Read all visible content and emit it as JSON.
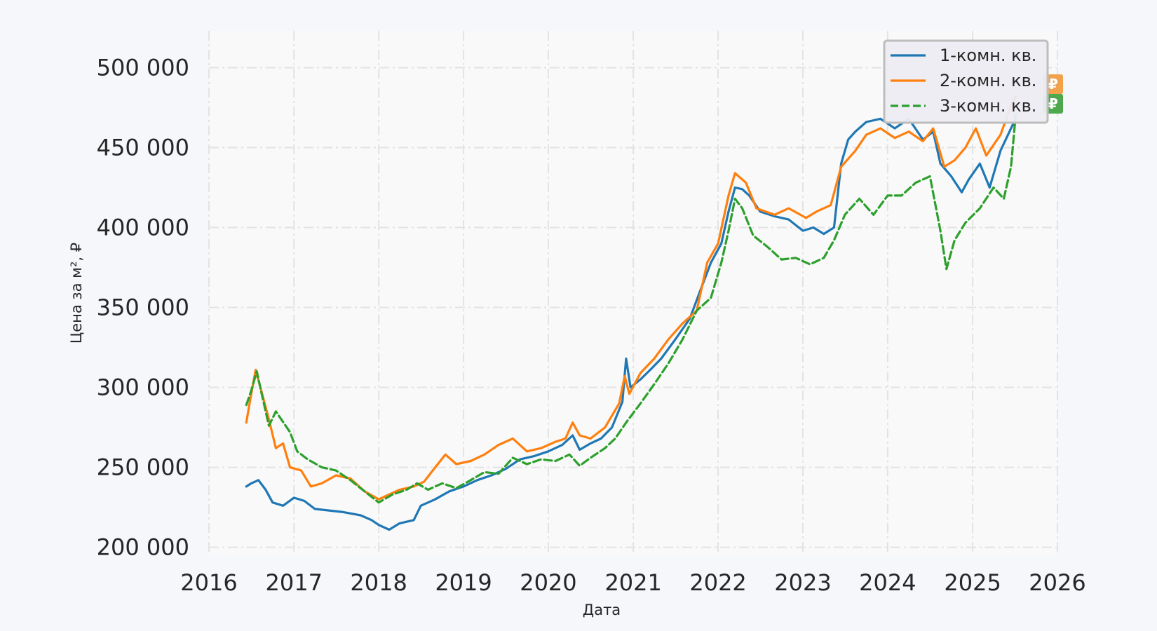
{
  "chart_data": {
    "type": "line",
    "xlabel": "Дата",
    "ylabel": "Цена за м², ₽",
    "xlim": [
      "2016-01-01",
      "2026-01-01"
    ],
    "ylim": [
      195000,
      523000
    ],
    "x_ticks": [
      "2016",
      "2017",
      "2018",
      "2019",
      "2020",
      "2021",
      "2022",
      "2023",
      "2024",
      "2025",
      "2026"
    ],
    "y_ticks": [
      {
        "value": 200000,
        "label": "200 000"
      },
      {
        "value": 250000,
        "label": "250 000"
      },
      {
        "value": 300000,
        "label": "300 000"
      },
      {
        "value": 350000,
        "label": "350 000"
      },
      {
        "value": 400000,
        "label": "400 000"
      },
      {
        "value": 450000,
        "label": "450 000"
      },
      {
        "value": 500000,
        "label": "500 000"
      }
    ],
    "grid": true,
    "legend_position": "top-right",
    "end_markers": [
      {
        "series": "2-комн. кв.",
        "text": "₽",
        "color": "#f2a24a"
      },
      {
        "series": "3-комн. кв.",
        "text": "₽",
        "color": "#4ea84e"
      }
    ],
    "series": [
      {
        "name": "1-комн. кв.",
        "color": "#1f77b4",
        "dash": "solid",
        "points": [
          [
            "2016-06-10",
            238000
          ],
          [
            "2016-07-01",
            240000
          ],
          [
            "2016-08-01",
            242000
          ],
          [
            "2016-09-01",
            236000
          ],
          [
            "2016-10-01",
            228000
          ],
          [
            "2016-11-15",
            226000
          ],
          [
            "2017-01-01",
            231000
          ],
          [
            "2017-02-15",
            229000
          ],
          [
            "2017-04-01",
            224000
          ],
          [
            "2017-06-01",
            223000
          ],
          [
            "2017-08-01",
            222000
          ],
          [
            "2017-10-15",
            220000
          ],
          [
            "2017-12-01",
            217000
          ],
          [
            "2018-01-01",
            214000
          ],
          [
            "2018-02-15",
            211000
          ],
          [
            "2018-04-01",
            215000
          ],
          [
            "2018-06-01",
            217000
          ],
          [
            "2018-07-01",
            226000
          ],
          [
            "2018-09-01",
            230000
          ],
          [
            "2018-11-01",
            235000
          ],
          [
            "2019-01-01",
            238000
          ],
          [
            "2019-03-01",
            242000
          ],
          [
            "2019-05-01",
            245000
          ],
          [
            "2019-07-01",
            249000
          ],
          [
            "2019-09-01",
            255000
          ],
          [
            "2019-11-01",
            257000
          ],
          [
            "2020-01-01",
            260000
          ],
          [
            "2020-03-01",
            264000
          ],
          [
            "2020-04-15",
            270000
          ],
          [
            "2020-05-15",
            261000
          ],
          [
            "2020-07-01",
            265000
          ],
          [
            "2020-08-15",
            268000
          ],
          [
            "2020-10-01",
            275000
          ],
          [
            "2020-11-15",
            291000
          ],
          [
            "2020-12-01",
            318000
          ],
          [
            "2020-12-20",
            300000
          ],
          [
            "2021-02-01",
            305000
          ],
          [
            "2021-03-15",
            311000
          ],
          [
            "2021-05-01",
            318000
          ],
          [
            "2021-07-01",
            330000
          ],
          [
            "2021-09-01",
            343000
          ],
          [
            "2021-10-15",
            360000
          ],
          [
            "2021-12-01",
            378000
          ],
          [
            "2022-01-15",
            390000
          ],
          [
            "2022-02-15",
            410000
          ],
          [
            "2022-03-15",
            425000
          ],
          [
            "2022-04-15",
            424000
          ],
          [
            "2022-05-15",
            420000
          ],
          [
            "2022-07-01",
            410000
          ],
          [
            "2022-09-01",
            407000
          ],
          [
            "2022-11-01",
            405000
          ],
          [
            "2023-01-01",
            398000
          ],
          [
            "2023-02-15",
            400000
          ],
          [
            "2023-04-01",
            396000
          ],
          [
            "2023-05-15",
            400000
          ],
          [
            "2023-06-15",
            440000
          ],
          [
            "2023-07-15",
            455000
          ],
          [
            "2023-08-15",
            460000
          ],
          [
            "2023-10-01",
            466000
          ],
          [
            "2023-12-01",
            468000
          ],
          [
            "2024-02-01",
            462000
          ],
          [
            "2024-04-01",
            468000
          ],
          [
            "2024-06-01",
            455000
          ],
          [
            "2024-07-15",
            460000
          ],
          [
            "2024-08-15",
            440000
          ],
          [
            "2024-10-01",
            432000
          ],
          [
            "2024-11-15",
            422000
          ],
          [
            "2024-12-15",
            430000
          ],
          [
            "2025-02-01",
            440000
          ],
          [
            "2025-03-15",
            425000
          ],
          [
            "2025-05-01",
            448000
          ],
          [
            "2025-06-15",
            462000
          ],
          [
            "2025-07-05",
            468000
          ]
        ]
      },
      {
        "name": "2-комн. кв.",
        "color": "#ff7f0e",
        "dash": "solid",
        "points": [
          [
            "2016-06-10",
            278000
          ],
          [
            "2016-06-25",
            291000
          ],
          [
            "2016-07-20",
            311000
          ],
          [
            "2016-08-15",
            297000
          ],
          [
            "2016-09-15",
            280000
          ],
          [
            "2016-10-15",
            262000
          ],
          [
            "2016-11-15",
            265000
          ],
          [
            "2016-12-15",
            250000
          ],
          [
            "2017-02-01",
            248000
          ],
          [
            "2017-03-15",
            238000
          ],
          [
            "2017-05-01",
            240000
          ],
          [
            "2017-07-01",
            245000
          ],
          [
            "2017-09-01",
            243000
          ],
          [
            "2017-11-01",
            235000
          ],
          [
            "2018-01-01",
            230000
          ],
          [
            "2018-02-15",
            233000
          ],
          [
            "2018-04-01",
            236000
          ],
          [
            "2018-06-01",
            238000
          ],
          [
            "2018-07-15",
            241000
          ],
          [
            "2018-09-01",
            250000
          ],
          [
            "2018-10-15",
            258000
          ],
          [
            "2018-12-01",
            252000
          ],
          [
            "2019-02-01",
            254000
          ],
          [
            "2019-04-01",
            258000
          ],
          [
            "2019-06-01",
            264000
          ],
          [
            "2019-08-01",
            268000
          ],
          [
            "2019-10-01",
            260000
          ],
          [
            "2019-12-01",
            262000
          ],
          [
            "2020-02-01",
            266000
          ],
          [
            "2020-03-15",
            268000
          ],
          [
            "2020-04-15",
            278000
          ],
          [
            "2020-05-15",
            270000
          ],
          [
            "2020-07-01",
            268000
          ],
          [
            "2020-09-01",
            275000
          ],
          [
            "2020-11-01",
            290000
          ],
          [
            "2020-11-25",
            307000
          ],
          [
            "2020-12-15",
            296000
          ],
          [
            "2021-02-01",
            309000
          ],
          [
            "2021-04-01",
            318000
          ],
          [
            "2021-06-01",
            330000
          ],
          [
            "2021-08-01",
            340000
          ],
          [
            "2021-10-01",
            348000
          ],
          [
            "2021-11-15",
            378000
          ],
          [
            "2022-01-01",
            390000
          ],
          [
            "2022-02-15",
            420000
          ],
          [
            "2022-03-15",
            434000
          ],
          [
            "2022-05-01",
            428000
          ],
          [
            "2022-06-15",
            412000
          ],
          [
            "2022-09-01",
            408000
          ],
          [
            "2022-11-01",
            412000
          ],
          [
            "2023-01-15",
            406000
          ],
          [
            "2023-03-01",
            410000
          ],
          [
            "2023-05-01",
            414000
          ],
          [
            "2023-06-15",
            438000
          ],
          [
            "2023-08-15",
            448000
          ],
          [
            "2023-10-01",
            458000
          ],
          [
            "2023-12-01",
            462000
          ],
          [
            "2024-02-01",
            456000
          ],
          [
            "2024-04-01",
            460000
          ],
          [
            "2024-06-01",
            454000
          ],
          [
            "2024-07-15",
            462000
          ],
          [
            "2024-09-01",
            438000
          ],
          [
            "2024-10-15",
            442000
          ],
          [
            "2024-12-01",
            450000
          ],
          [
            "2025-01-15",
            462000
          ],
          [
            "2025-03-01",
            445000
          ],
          [
            "2025-05-01",
            458000
          ],
          [
            "2025-06-15",
            476000
          ],
          [
            "2025-07-05",
            482000
          ]
        ]
      },
      {
        "name": "3-комн. кв.",
        "color": "#2ca02c",
        "dash": "dashed",
        "points": [
          [
            "2016-06-10",
            289000
          ],
          [
            "2016-07-01",
            298000
          ],
          [
            "2016-07-25",
            310000
          ],
          [
            "2016-08-15",
            296000
          ],
          [
            "2016-09-15",
            276000
          ],
          [
            "2016-10-15",
            285000
          ],
          [
            "2016-12-15",
            272000
          ],
          [
            "2017-01-15",
            260000
          ],
          [
            "2017-03-01",
            255000
          ],
          [
            "2017-05-01",
            250000
          ],
          [
            "2017-07-01",
            248000
          ],
          [
            "2017-09-01",
            242000
          ],
          [
            "2017-11-01",
            235000
          ],
          [
            "2018-01-01",
            228000
          ],
          [
            "2018-03-01",
            233000
          ],
          [
            "2018-05-01",
            236000
          ],
          [
            "2018-06-15",
            240000
          ],
          [
            "2018-08-01",
            236000
          ],
          [
            "2018-10-01",
            240000
          ],
          [
            "2018-12-01",
            237000
          ],
          [
            "2019-02-01",
            242000
          ],
          [
            "2019-04-01",
            247000
          ],
          [
            "2019-06-01",
            246000
          ],
          [
            "2019-08-01",
            256000
          ],
          [
            "2019-10-01",
            252000
          ],
          [
            "2019-12-01",
            255000
          ],
          [
            "2020-02-01",
            254000
          ],
          [
            "2020-04-01",
            258000
          ],
          [
            "2020-05-15",
            251000
          ],
          [
            "2020-07-01",
            256000
          ],
          [
            "2020-09-01",
            262000
          ],
          [
            "2020-10-15",
            268000
          ],
          [
            "2020-12-01",
            278000
          ],
          [
            "2021-02-01",
            290000
          ],
          [
            "2021-04-01",
            302000
          ],
          [
            "2021-06-01",
            315000
          ],
          [
            "2021-08-01",
            330000
          ],
          [
            "2021-10-01",
            348000
          ],
          [
            "2021-12-01",
            356000
          ],
          [
            "2022-01-15",
            378000
          ],
          [
            "2022-02-15",
            398000
          ],
          [
            "2022-03-15",
            418000
          ],
          [
            "2022-04-15",
            412000
          ],
          [
            "2022-06-01",
            395000
          ],
          [
            "2022-08-01",
            388000
          ],
          [
            "2022-10-01",
            380000
          ],
          [
            "2022-12-01",
            381000
          ],
          [
            "2023-02-01",
            377000
          ],
          [
            "2023-04-01",
            381000
          ],
          [
            "2023-05-15",
            392000
          ],
          [
            "2023-07-01",
            408000
          ],
          [
            "2023-09-01",
            418000
          ],
          [
            "2023-11-01",
            408000
          ],
          [
            "2024-01-01",
            420000
          ],
          [
            "2024-03-01",
            420000
          ],
          [
            "2024-05-01",
            428000
          ],
          [
            "2024-07-01",
            432000
          ],
          [
            "2024-08-15",
            398000
          ],
          [
            "2024-09-10",
            374000
          ],
          [
            "2024-10-15",
            392000
          ],
          [
            "2024-12-01",
            403000
          ],
          [
            "2025-02-01",
            412000
          ],
          [
            "2025-04-01",
            425000
          ],
          [
            "2025-05-15",
            418000
          ],
          [
            "2025-06-15",
            438000
          ],
          [
            "2025-07-05",
            470000
          ]
        ]
      }
    ]
  }
}
